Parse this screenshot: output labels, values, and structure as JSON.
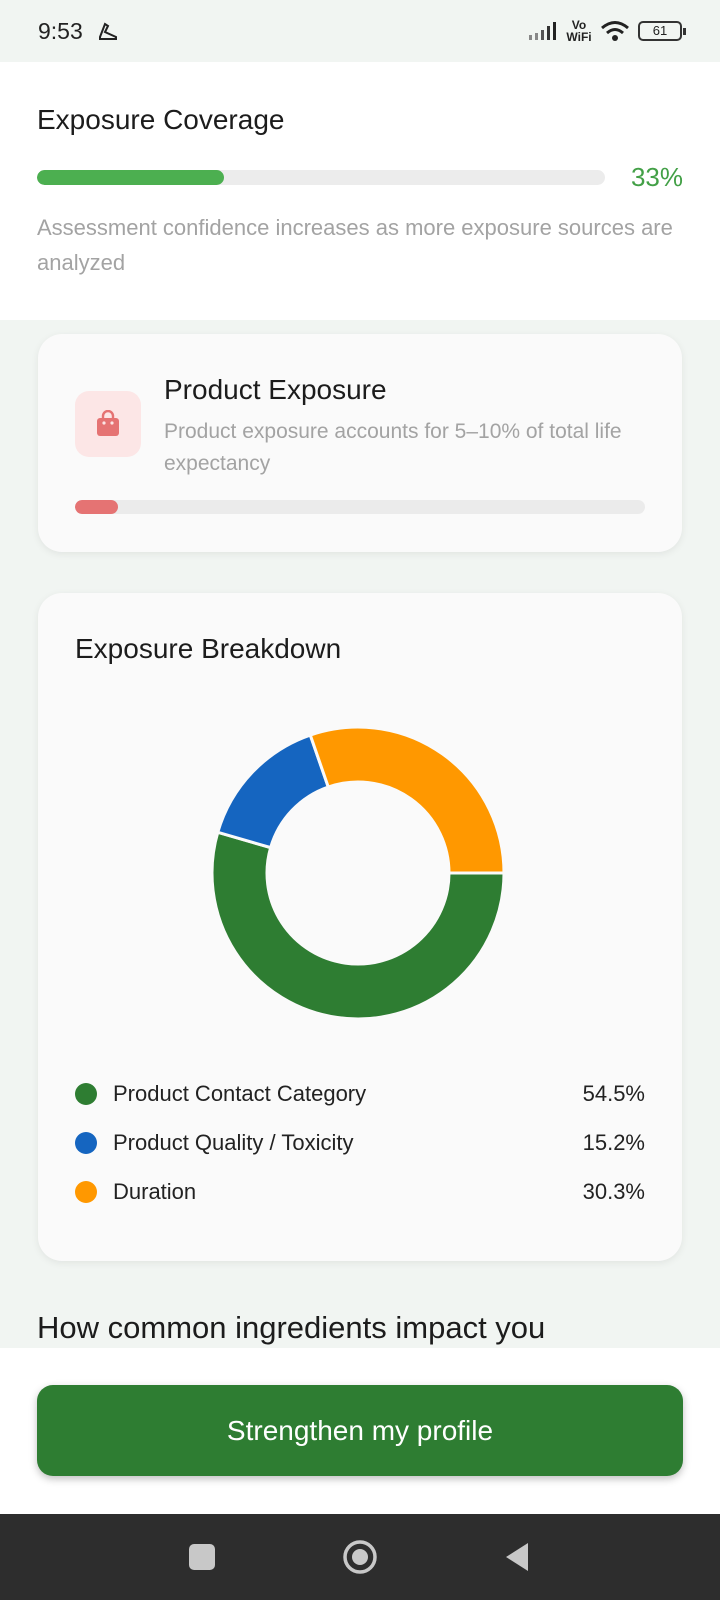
{
  "status_bar": {
    "time": "9:53",
    "network": "Vo WiFi",
    "battery": "61",
    "icons": [
      "sneaker-icon",
      "signal-icon",
      "wifi-icon",
      "battery-icon"
    ]
  },
  "coverage": {
    "title": "Exposure Coverage",
    "percent_label": "33%",
    "progress": 0.33,
    "note": "Assessment confidence increases as more exposure sources are analyzed",
    "accent": "#4caf50"
  },
  "product_exposure": {
    "icon": "shopping-bag-icon",
    "title": "Product Exposure",
    "description": "Product exposure accounts for 5–10% of total life expectancy",
    "progress": 0.075,
    "accent": "#e57373"
  },
  "breakdown": {
    "title": "Exposure Breakdown",
    "items": [
      {
        "label": "Product Contact Category",
        "value": "54.5%",
        "color": "#2e7d32"
      },
      {
        "label": "Product Quality / Toxicity",
        "value": "15.2%",
        "color": "#1565c0"
      },
      {
        "label": "Duration",
        "value": "30.3%",
        "color": "#ff9800"
      }
    ]
  },
  "chart_data": {
    "type": "pie",
    "categories": [
      "Product Contact Category",
      "Product Quality / Toxicity",
      "Duration"
    ],
    "values": [
      54.5,
      15.2,
      30.3
    ],
    "colors": [
      "#2e7d32",
      "#1565c0",
      "#ff9800"
    ],
    "title": "Exposure Breakdown",
    "donut": true
  },
  "next_section": {
    "heading": "How common ingredients impact you"
  },
  "cta": {
    "label": "Strengthen my profile",
    "color": "#2e7d32"
  },
  "nav": {
    "buttons": [
      "recents-square-icon",
      "home-circle-icon",
      "back-triangle-icon"
    ]
  }
}
